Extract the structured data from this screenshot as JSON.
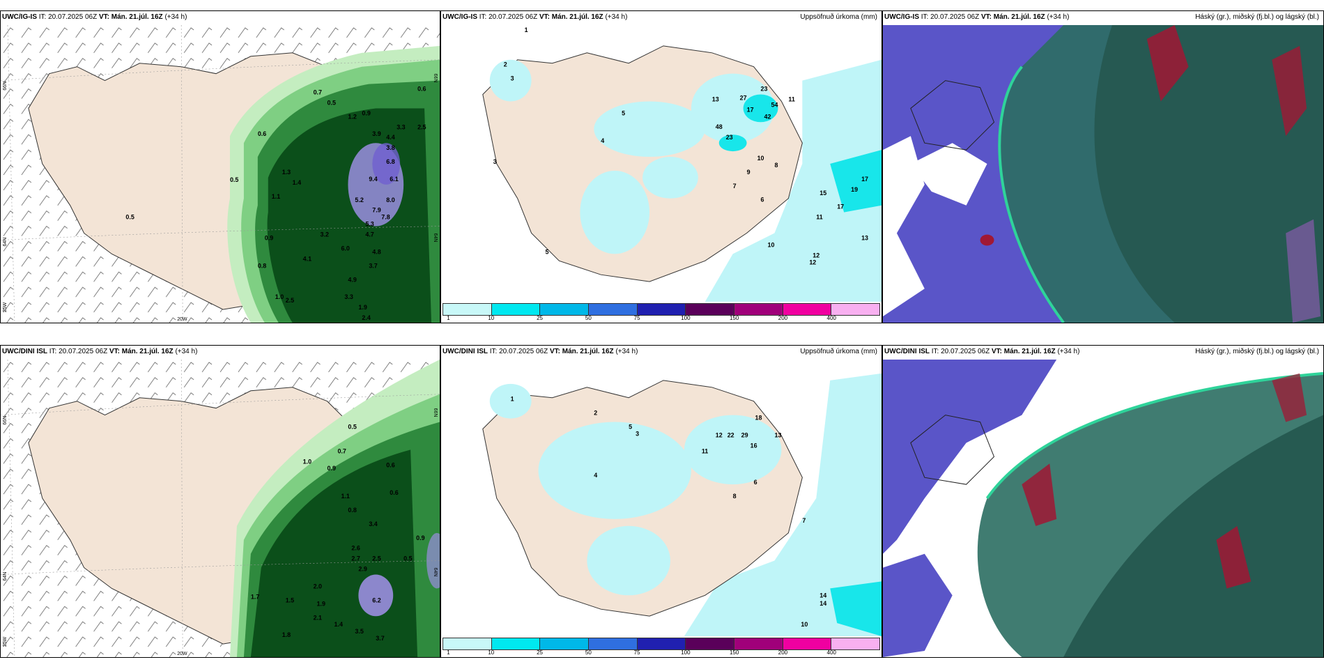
{
  "colors": {
    "land": "#f3e4d6",
    "green_dark": "#0b4f1a",
    "green_mid": "#2f8a3e",
    "green_light": "#7fcf83",
    "green_pale": "#c4edc0",
    "violet": "#9a8de0",
    "cyan_pale": "#bff5f8",
    "cyan": "#18e6ea",
    "cloud_blue": "#5a55c8",
    "cloud_teal": "#2b6e62",
    "cloud_green": "#2fd39a",
    "cloud_red": "#a01834"
  },
  "panels": [
    {
      "id": "p1",
      "model": "UWC/IG-IS",
      "it_label": "IT:",
      "it_value": "20.07.2025 06Z",
      "vt_label": "VT:",
      "vt_value": "Mán. 21.júl. 16Z",
      "lead": "(+34 h)",
      "right_title": "",
      "axis_labels": {
        "lat1": "66N",
        "lat2": "64N",
        "lon_w": "25W",
        "lon_c": "20W",
        "lat1r": "66N",
        "lat2r": "64N"
      },
      "values": [
        "0.7",
        "0.5",
        "0.6",
        "0.5",
        "0.9",
        "1.2",
        "2.5",
        "3.3",
        "3.9",
        "4.4",
        "3.8",
        "6.8",
        "5.2",
        "9.4",
        "8.0",
        "6.1",
        "7.9",
        "7.8",
        "5.3",
        "4.7",
        "3.2",
        "6.0",
        "4.9",
        "3.7",
        "4.8",
        "3.3",
        "1.9",
        "2.4",
        "1.0",
        "2.5",
        "4.1",
        "0.8",
        "0.9",
        "1.1",
        "1.3",
        "1.4",
        "0.5",
        "0.6"
      ]
    },
    {
      "id": "p2",
      "model": "UWC/IG-IS",
      "it_label": "IT:",
      "it_value": "20.07.2025 06Z",
      "vt_label": "VT:",
      "vt_value": "Mán. 21.júl. 16Z",
      "lead": "(+34 h)",
      "right_title": "Uppsöfnuð úrkoma (mm)",
      "values": [
        "1",
        "2",
        "3",
        "4",
        "5",
        "13",
        "23",
        "27",
        "54",
        "17",
        "42",
        "48",
        "23",
        "11",
        "15",
        "19",
        "17",
        "17",
        "12",
        "10",
        "9",
        "8",
        "7",
        "6",
        "13",
        "10",
        "12",
        "11",
        "5",
        "3"
      ]
    },
    {
      "id": "p3",
      "model": "UWC/IG-IS",
      "it_label": "IT:",
      "it_value": "20.07.2025 06Z",
      "vt_label": "VT:",
      "vt_value": "Mán. 21.júl. 16Z",
      "lead": "(+34 h)",
      "right_title": "Háský (gr.), miðský (fj.bl.) og lágský (bl.)"
    },
    {
      "id": "p4",
      "model": "UWC/DINI ISL",
      "it_label": "IT:",
      "it_value": "20.07.2025 06Z",
      "vt_label": "VT:",
      "vt_value": "Mán. 21.júl. 16Z",
      "lead": "(+34 h)",
      "right_title": "",
      "axis_labels": {
        "lat1": "66N",
        "lat2": "64N",
        "lon_w": "25W",
        "lon_c": "20W",
        "lat1r": "66N",
        "lat2r": "64N"
      },
      "values": [
        "0.5",
        "0.7",
        "1.0",
        "0.6",
        "0.9",
        "1.1",
        "3.4",
        "0.8",
        "0.6",
        "2.6",
        "2.7",
        "2.5",
        "0.5",
        "0.9",
        "6.2",
        "2.9",
        "3.5",
        "3.7",
        "2.0",
        "1.9",
        "2.1",
        "1.8",
        "1.5",
        "1.7",
        "1.4"
      ]
    },
    {
      "id": "p5",
      "model": "UWC/DINI ISL",
      "it_label": "IT:",
      "it_value": "20.07.2025 06Z",
      "vt_label": "VT:",
      "vt_value": "Mán. 21.júl. 16Z",
      "lead": "(+34 h)",
      "right_title": "Uppsöfnuð úrkoma (mm)",
      "values": [
        "1",
        "2",
        "3",
        "4",
        "5",
        "6",
        "7",
        "8",
        "11",
        "12",
        "13",
        "14",
        "16",
        "18",
        "22",
        "29",
        "10",
        "14"
      ]
    },
    {
      "id": "p6",
      "model": "UWC/DINI ISL",
      "it_label": "IT:",
      "it_value": "20.07.2025 06Z",
      "vt_label": "VT:",
      "vt_value": "Mán. 21.júl. 16Z",
      "lead": "(+34 h)",
      "right_title": "Háský (gr.), miðský (fj.bl.) og lágský (bl.)"
    }
  ],
  "colorbar": {
    "ticks": [
      "1",
      "10",
      "25",
      "50",
      "75",
      "100",
      "150",
      "200",
      "400"
    ],
    "colors": [
      "#c8f8f8",
      "#00e8f0",
      "#00b8e8",
      "#2f6fe0",
      "#2020b0",
      "#5a005a",
      "#a0007a",
      "#f000a0",
      "#f8b0f0"
    ]
  }
}
